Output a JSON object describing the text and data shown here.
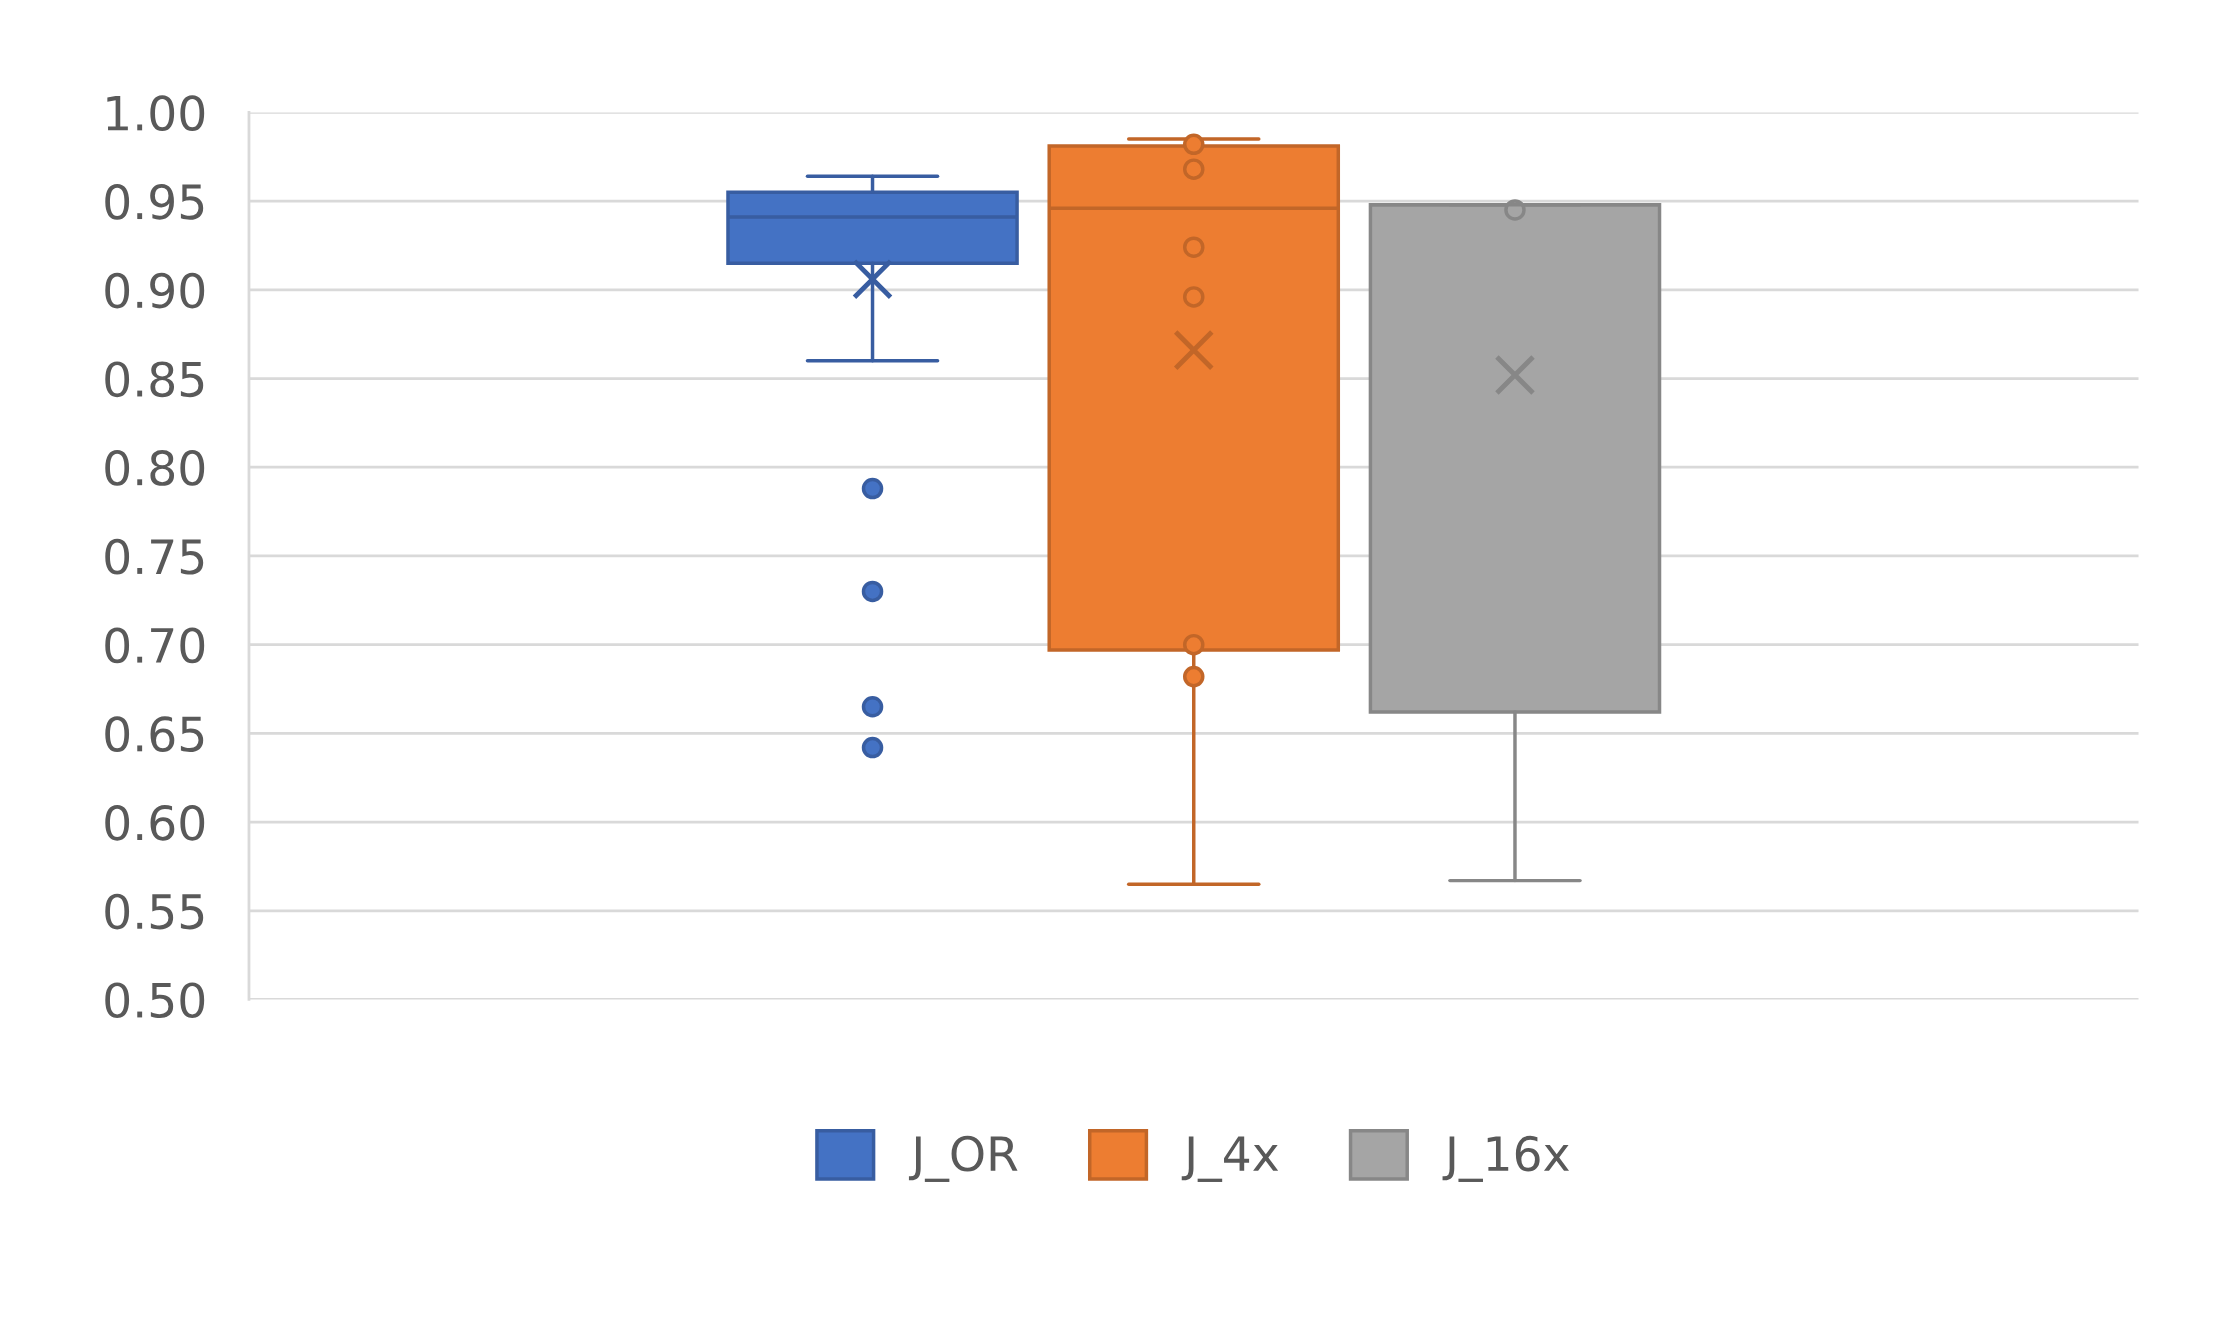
{
  "chart_data": {
    "type": "box",
    "categories": [
      null
    ],
    "series": [
      {
        "name": "J_OR",
        "color": "#4472c4",
        "boxes": [
          {
            "low": 0.86,
            "q1": 0.915,
            "median": 0.941,
            "q3": 0.955,
            "high": 0.964,
            "mean": 0.906,
            "outliers": [
              0.788,
              0.73,
              0.665,
              0.642
            ]
          }
        ]
      },
      {
        "name": "J_4x",
        "color": "#ed7d31",
        "boxes": [
          {
            "low": 0.565,
            "q1": 0.697,
            "median": 0.946,
            "q3": 0.981,
            "high": 0.985,
            "mean": 0.866,
            "outliers": [
              0.982,
              0.968,
              0.924,
              0.896,
              0.7,
              0.682
            ]
          }
        ]
      },
      {
        "name": "J_16x",
        "color": "#a5a5a5",
        "boxes": [
          {
            "low": 0.567,
            "q1": 0.662,
            "median": 0.948,
            "q3": 0.948,
            "high": 0.948,
            "mean": 0.852,
            "outliers": [
              0.945
            ]
          }
        ]
      }
    ],
    "ylim": [
      0.5,
      1.0
    ],
    "yticks": [
      {
        "value": 0.5,
        "label": "0.50"
      },
      {
        "value": 0.55,
        "label": "0.55"
      },
      {
        "value": 0.6,
        "label": "0.60"
      },
      {
        "value": 0.65,
        "label": "0.65"
      },
      {
        "value": 0.7,
        "label": "0.70"
      },
      {
        "value": 0.75,
        "label": "0.75"
      },
      {
        "value": 0.8,
        "label": "0.80"
      },
      {
        "value": 0.85,
        "label": "0.85"
      },
      {
        "value": 0.9,
        "label": "0.90"
      },
      {
        "value": 0.95,
        "label": "0.95"
      },
      {
        "value": 1.0,
        "label": "1.00"
      }
    ],
    "grid": "y",
    "legend": "bottom",
    "marker": "circle"
  }
}
